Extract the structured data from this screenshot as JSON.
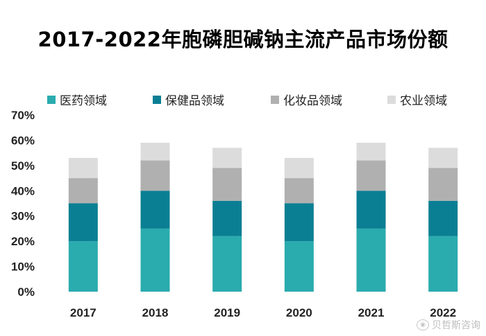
{
  "chart_data": {
    "type": "bar",
    "stacked": true,
    "title": "2017-2022年胞磷胆碱钠主流产品市场份额",
    "categories": [
      "2017",
      "2018",
      "2019",
      "2020",
      "2021",
      "2022"
    ],
    "series": [
      {
        "name": "医药领域",
        "color": "#2aabae",
        "values": [
          20,
          25,
          22,
          20,
          25,
          22
        ]
      },
      {
        "name": "保健品领域",
        "color": "#0a7f93",
        "values": [
          15,
          15,
          14,
          15,
          15,
          14
        ]
      },
      {
        "name": "化妆品领域",
        "color": "#b0b0b0",
        "values": [
          10,
          12,
          13,
          10,
          12,
          13
        ]
      },
      {
        "name": "农业领域",
        "color": "#dcdcdc",
        "values": [
          8,
          7,
          8,
          8,
          7,
          8
        ]
      }
    ],
    "ylim": [
      0,
      70
    ],
    "yticks": [
      "0%",
      "10%",
      "20%",
      "30%",
      "40%",
      "50%",
      "60%",
      "70%"
    ],
    "legend_position": "top",
    "grid": false
  },
  "watermark": {
    "text": "贝哲斯咨询"
  }
}
